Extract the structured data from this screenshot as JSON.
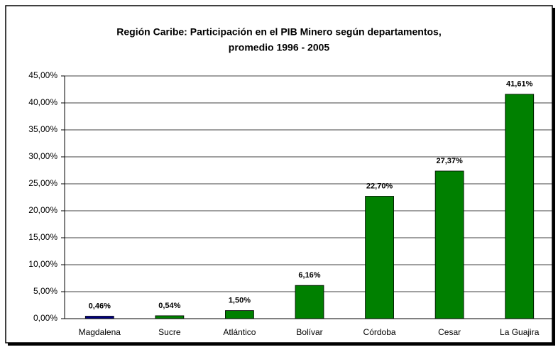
{
  "chart_data": {
    "type": "bar",
    "title_lines": [
      "Región Caribe: Participación en el PIB Minero según departamentos,",
      "promedio 1996 - 2005"
    ],
    "categories": [
      "Magdalena",
      "Sucre",
      "Atlántico",
      "Bolívar",
      "Córdoba",
      "Cesar",
      "La Guajira"
    ],
    "values": [
      0.46,
      0.54,
      1.5,
      6.16,
      22.7,
      27.37,
      41.61
    ],
    "value_labels": [
      "0,46%",
      "0,54%",
      "1,50%",
      "6,16%",
      "22,70%",
      "27,37%",
      "41,61%"
    ],
    "colors": [
      "#000080",
      "#008000",
      "#008000",
      "#008000",
      "#008000",
      "#008000",
      "#008000"
    ],
    "ylim": [
      0,
      45
    ],
    "yticks": [
      {
        "value": 0,
        "label": "0,00%"
      },
      {
        "value": 5,
        "label": "5,00%"
      },
      {
        "value": 10,
        "label": "10,00%"
      },
      {
        "value": 15,
        "label": "15,00%"
      },
      {
        "value": 20,
        "label": "20,00%"
      },
      {
        "value": 25,
        "label": "25,00%"
      },
      {
        "value": 30,
        "label": "30,00%"
      },
      {
        "value": 35,
        "label": "35,00%"
      },
      {
        "value": 40,
        "label": "40,00%"
      },
      {
        "value": 45,
        "label": "45,00%"
      }
    ],
    "grid": true
  }
}
